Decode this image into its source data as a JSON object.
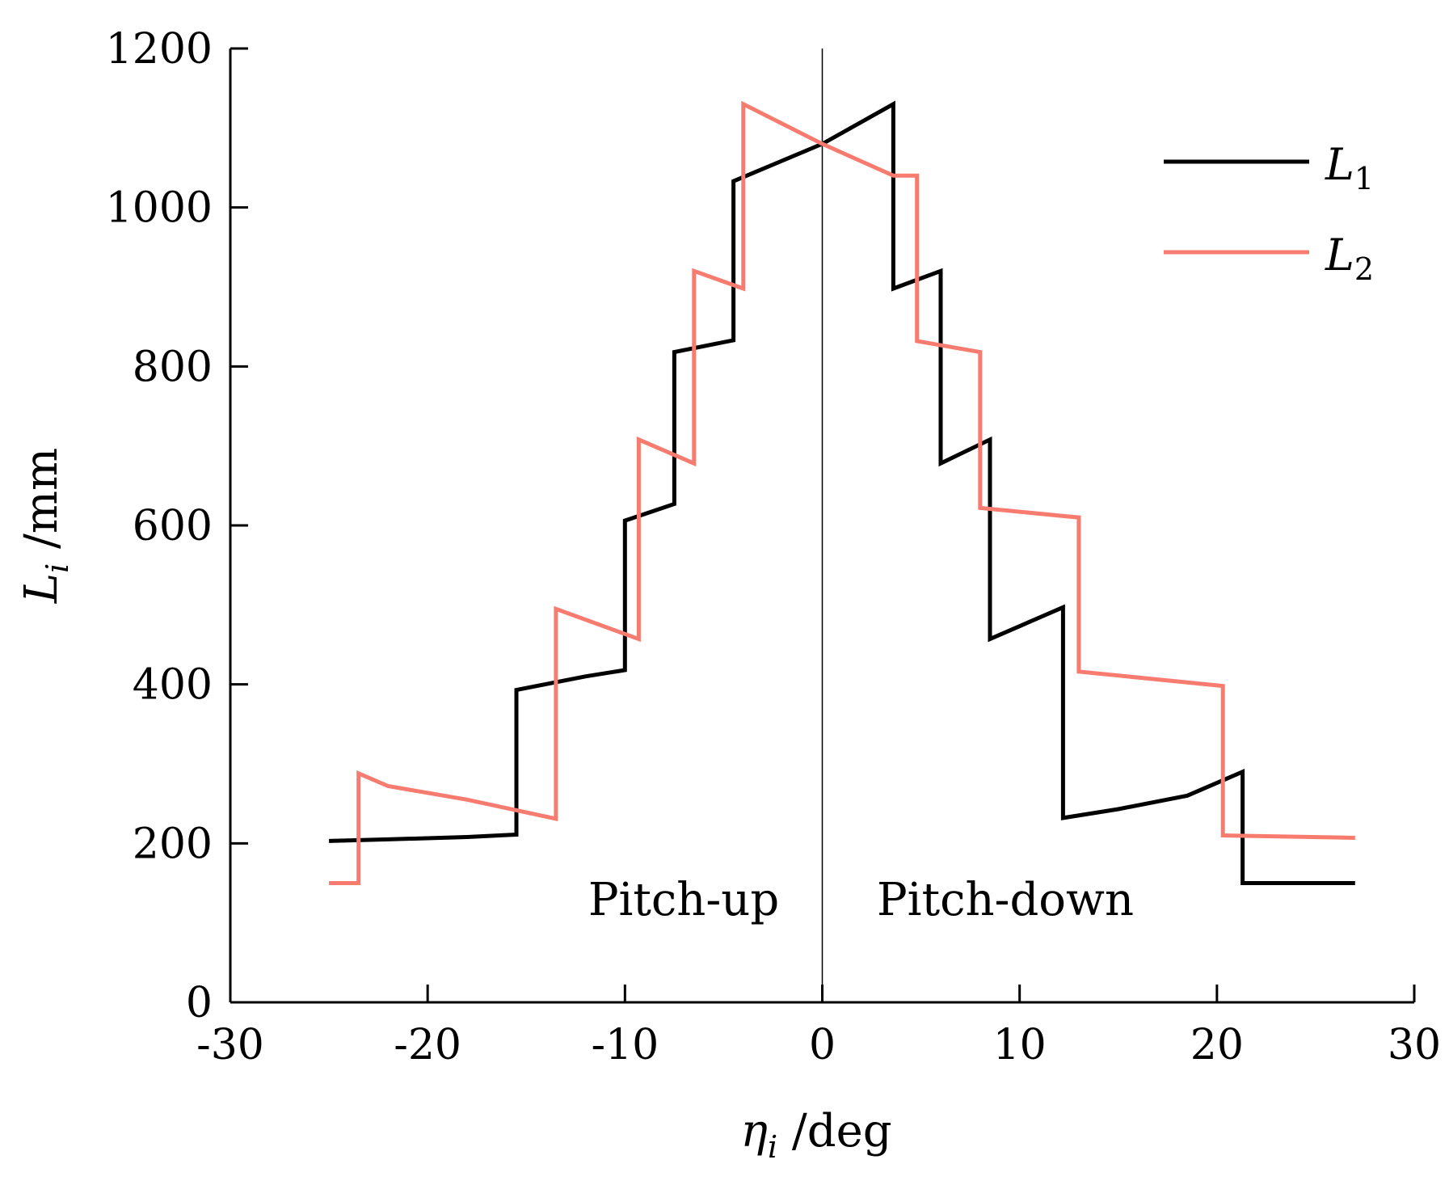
{
  "chart_data": {
    "type": "line",
    "title": "",
    "xlabel": {
      "symbol": "η",
      "sub": "i",
      "unit": " /deg"
    },
    "ylabel": {
      "symbol": "L",
      "sub": "i",
      "unit": " /mm"
    },
    "xlim": [
      -30,
      30
    ],
    "ylim": [
      0,
      1200
    ],
    "xticks": [
      -30,
      -20,
      -10,
      0,
      10,
      20,
      30
    ],
    "yticks": [
      0,
      200,
      400,
      600,
      800,
      1000,
      1200
    ],
    "grid": false,
    "legend_position": "top-right",
    "annotations": [
      "Pitch-up",
      "Pitch-down"
    ],
    "series": [
      {
        "name": "L1",
        "label_main": "L",
        "label_sub": "1",
        "color": "#000000",
        "x": [
          -25,
          -22,
          -18,
          -15.5,
          -15.5,
          -12,
          -10,
          -10,
          -7.5,
          -7.5,
          -4.5,
          -4.5,
          0,
          3.6,
          3.6,
          6,
          6,
          8.5,
          8.5,
          12.2,
          12.2,
          15,
          18.5,
          21.3,
          21.3,
          27
        ],
        "y": [
          203,
          205,
          208,
          211,
          393,
          410,
          418,
          606,
          627,
          818,
          833,
          1033,
          1080,
          1130,
          898,
          920,
          678,
          708,
          457,
          497,
          232,
          243,
          260,
          290,
          150,
          150
        ]
      },
      {
        "name": "L2",
        "label_main": "L",
        "label_sub": "2",
        "color": "#f87b6f",
        "x": [
          -25,
          -23.5,
          -23.5,
          -22,
          -18,
          -13.5,
          -13.5,
          -9.3,
          -9.3,
          -6.5,
          -6.5,
          -4,
          -4,
          0,
          3.6,
          4.8,
          4.8,
          8,
          8,
          13,
          13,
          20.3,
          20.3,
          27
        ],
        "y": [
          150,
          150,
          288,
          272,
          255,
          231,
          495,
          457,
          708,
          678,
          920,
          898,
          1130,
          1080,
          1040,
          1040,
          832,
          818,
          622,
          610,
          416,
          398,
          210,
          207
        ]
      }
    ]
  }
}
